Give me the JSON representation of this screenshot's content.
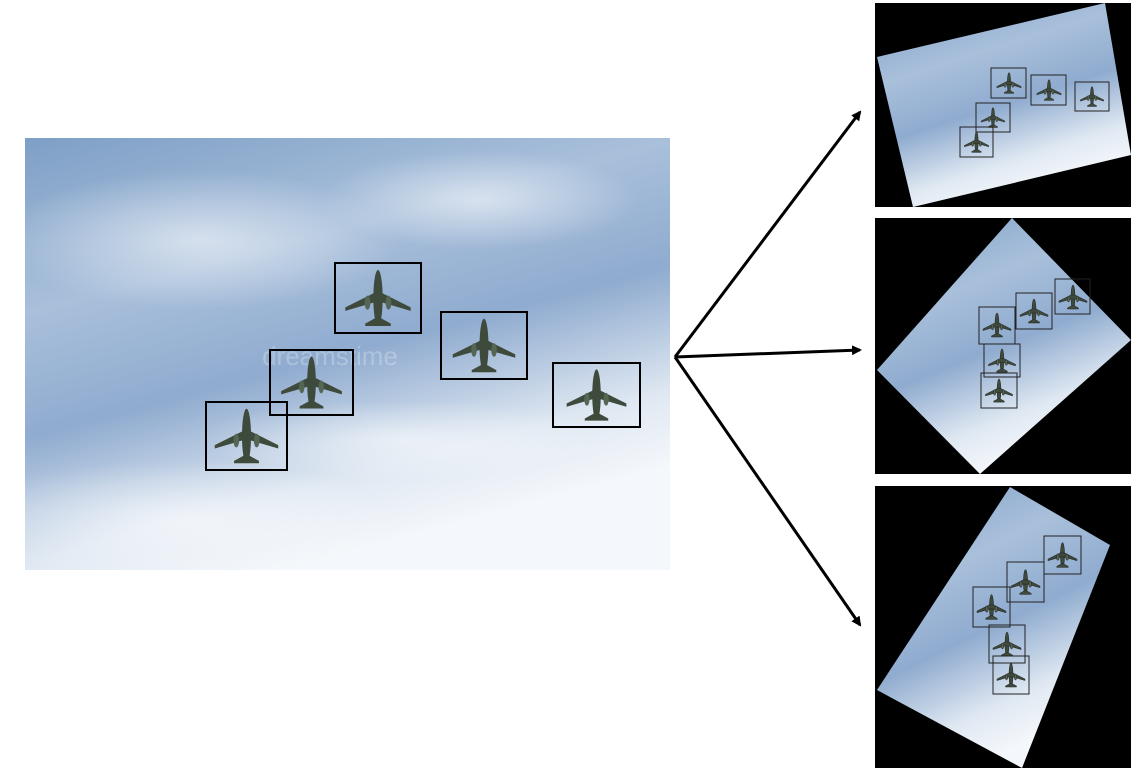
{
  "watermark": "dreamstime"
}
